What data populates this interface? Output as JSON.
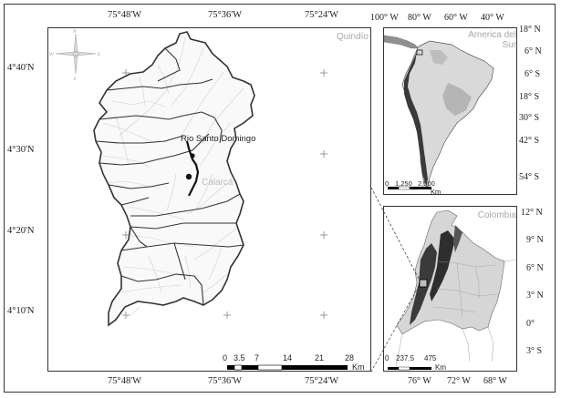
{
  "main_map": {
    "region_label": "Quindío",
    "longitude_ticks": [
      "75°48'W",
      "75°36'W",
      "75°24'W"
    ],
    "latitude_ticks": [
      "4°40'N",
      "4°30'N",
      "4°20'N",
      "4°10'N"
    ],
    "places": {
      "river": "Rio Santo Domingo",
      "town": "Calarcá"
    },
    "scale": {
      "ticks": [
        "0",
        "3.5",
        "7",
        "14",
        "21",
        "28"
      ],
      "unit": "Km"
    },
    "north_arrow_labels": [
      "N",
      "S",
      "E",
      "W"
    ]
  },
  "south_america_inset": {
    "title_line1": "America del",
    "title_line2": "Sur",
    "longitude_ticks": [
      "100° W",
      "80° W",
      "60° W",
      "40° W"
    ],
    "latitude_ticks": [
      "18° N",
      "6° N",
      "6° S",
      "18° S",
      "30° S",
      "42° S",
      "54° S"
    ],
    "scale": {
      "ticks": [
        "0",
        "1,250",
        "2,500"
      ],
      "unit": "Km"
    }
  },
  "colombia_inset": {
    "title": "Colombia",
    "longitude_ticks": [
      "76° W",
      "72° W",
      "68° W"
    ],
    "latitude_ticks": [
      "12° N",
      "9° N",
      "6° N",
      "3° N",
      "0°",
      "3° S"
    ],
    "scale": {
      "ticks": [
        "0",
        "237.5",
        "475"
      ],
      "unit": "Km"
    }
  }
}
